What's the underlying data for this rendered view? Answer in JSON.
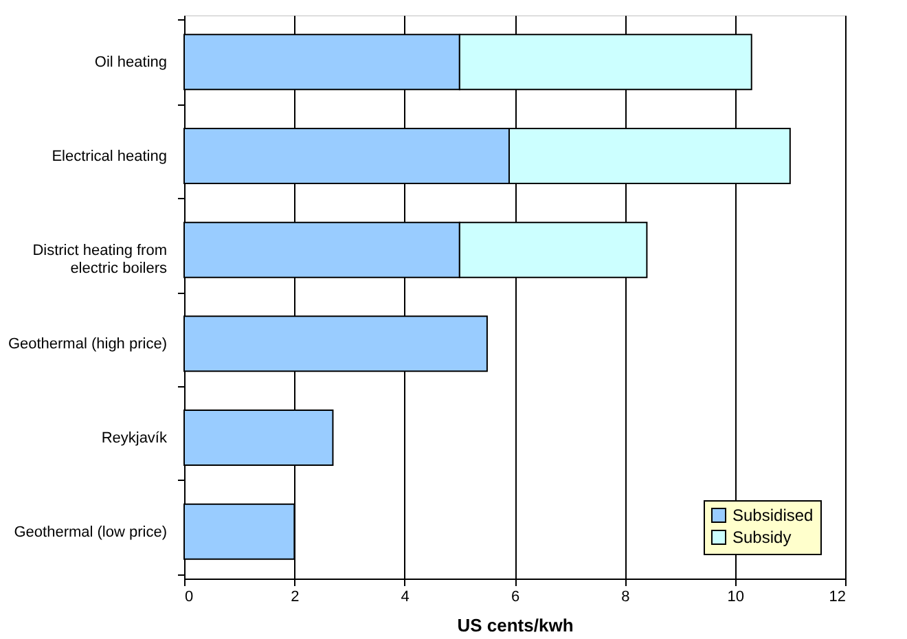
{
  "chart_data": {
    "type": "bar",
    "orientation": "horizontal",
    "stacked": true,
    "categories": [
      "Oil heating",
      "Electrical heating",
      "District heating from electric boilers",
      "Geothermal (high price)",
      "Reykjavík",
      "Geothermal (low price)"
    ],
    "series": [
      {
        "name": "Subsidised",
        "color": "#99ccff",
        "values": [
          5.0,
          5.9,
          5.0,
          5.5,
          2.7,
          2.0
        ]
      },
      {
        "name": "Subsidy",
        "color": "#ccffff",
        "values": [
          5.3,
          5.1,
          3.4,
          null,
          null,
          null
        ]
      }
    ],
    "xlabel": "US cents/kwh",
    "xlim": [
      0,
      12
    ],
    "xticks": [
      0,
      2,
      4,
      6,
      8,
      10,
      12
    ],
    "grid": "x",
    "legend": "bottom right"
  }
}
